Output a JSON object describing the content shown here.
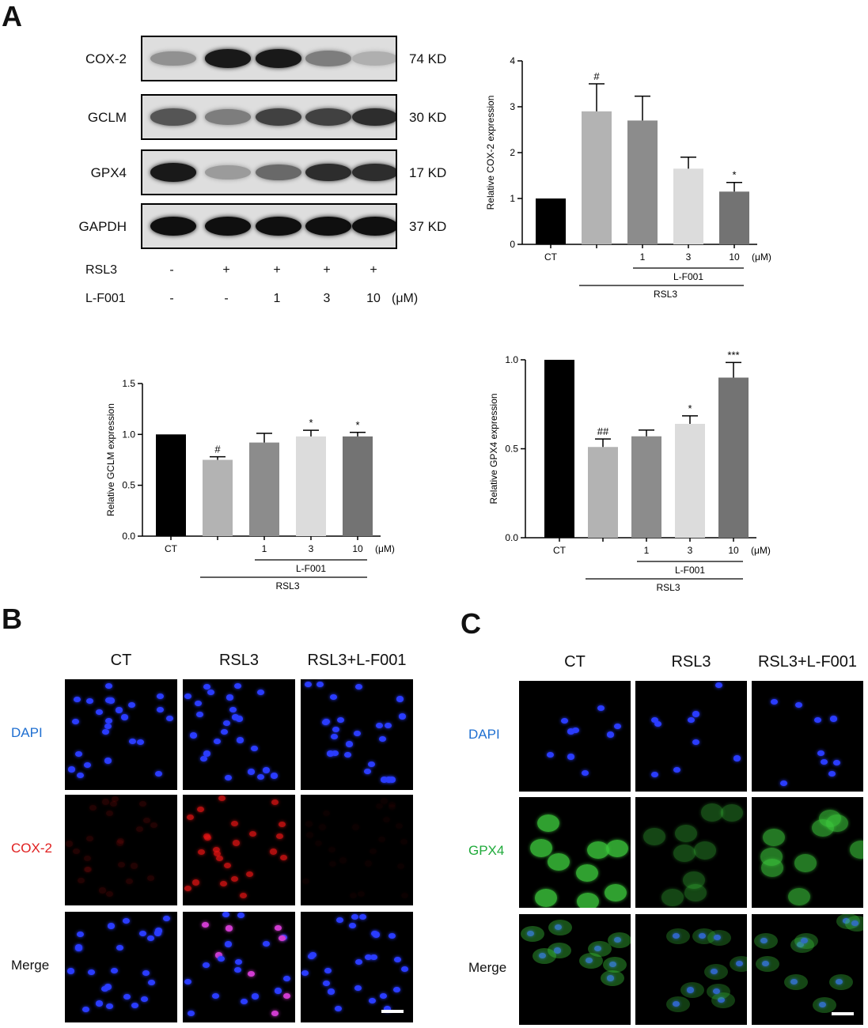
{
  "panels": {
    "A": {
      "letter": "A"
    },
    "B": {
      "letter": "B"
    },
    "C": {
      "letter": "C"
    }
  },
  "western_blot": {
    "proteins": [
      {
        "name": "COX-2",
        "kd": "74 KD",
        "intensities": [
          0.35,
          0.95,
          0.95,
          0.45,
          0.2
        ]
      },
      {
        "name": "GCLM",
        "kd": "30 KD",
        "intensities": [
          0.65,
          0.45,
          0.75,
          0.75,
          0.85
        ]
      },
      {
        "name": "GPX4",
        "kd": "17 KD",
        "intensities": [
          0.95,
          0.3,
          0.55,
          0.85,
          0.85
        ]
      },
      {
        "name": "GAPDH",
        "kd": "37 KD",
        "intensities": [
          1.0,
          1.0,
          1.0,
          1.0,
          1.0
        ]
      }
    ],
    "treatments": [
      {
        "label": "RSL3",
        "values": [
          "-",
          "+",
          "+",
          "+",
          "+"
        ],
        "unit": ""
      },
      {
        "label": "L-F001",
        "values": [
          "-",
          "-",
          "1",
          "3",
          "10"
        ],
        "unit": "(μM)"
      }
    ]
  },
  "chart_data": [
    {
      "type": "bar",
      "ylabel": "Relative COX-2 expression",
      "categories": [
        "CT",
        "",
        "1",
        "3",
        "10"
      ],
      "unit_label": "(μM)",
      "values": [
        1.0,
        2.9,
        2.7,
        1.65,
        1.15
      ],
      "errors": [
        0,
        0.6,
        0.53,
        0.25,
        0.2
      ],
      "significance": [
        "",
        "#",
        "",
        "",
        "*"
      ],
      "colors": [
        "#000000",
        "#b3b3b3",
        "#8c8c8c",
        "#dcdcdc",
        "#737373"
      ],
      "ylim": [
        0,
        4
      ],
      "yticks": [
        "0",
        "1",
        "2",
        "3",
        "4"
      ],
      "bracket_inner": "L-F001",
      "bracket_outer": "RSL3"
    },
    {
      "type": "bar",
      "ylabel": "Relative GCLM expression",
      "categories": [
        "CT",
        "",
        "1",
        "3",
        "10"
      ],
      "unit_label": "(μM)",
      "values": [
        1.0,
        0.75,
        0.92,
        0.98,
        0.98
      ],
      "errors": [
        0,
        0.03,
        0.09,
        0.06,
        0.04
      ],
      "significance": [
        "",
        "#",
        "",
        "*",
        "*"
      ],
      "colors": [
        "#000000",
        "#b3b3b3",
        "#8c8c8c",
        "#dcdcdc",
        "#737373"
      ],
      "ylim": [
        0,
        1.5
      ],
      "yticks": [
        "0.0",
        "0.5",
        "1.0",
        "1.5"
      ],
      "bracket_inner": "L-F001",
      "bracket_outer": "RSL3"
    },
    {
      "type": "bar",
      "ylabel": "Relative GPX4 expression",
      "categories": [
        "CT",
        "",
        "1",
        "3",
        "10"
      ],
      "unit_label": "(μM)",
      "values": [
        1.0,
        0.51,
        0.57,
        0.64,
        0.9
      ],
      "errors": [
        0,
        0.045,
        0.035,
        0.045,
        0.085
      ],
      "significance": [
        "",
        "##",
        "",
        "*",
        "***"
      ],
      "colors": [
        "#000000",
        "#b3b3b3",
        "#8c8c8c",
        "#dcdcdc",
        "#737373"
      ],
      "ylim": [
        0,
        1.0
      ],
      "yticks": [
        "0.0",
        "0.5",
        "1.0"
      ],
      "bracket_inner": "L-F001",
      "bracket_outer": "RSL3"
    }
  ],
  "microscopy_B": {
    "columns": [
      "CT",
      "RSL3",
      "RSL3+L-F001"
    ],
    "rows": [
      {
        "label": "DAPI",
        "color": "#1f6fd1"
      },
      {
        "label": "COX-2",
        "color": "#e02020"
      },
      {
        "label": "Merge",
        "color": "#111111"
      }
    ],
    "signal_levels": [
      [
        0.8,
        0.8,
        0.8
      ],
      [
        0.15,
        0.75,
        0.05
      ],
      [
        0.8,
        0.9,
        0.8
      ]
    ]
  },
  "microscopy_C": {
    "columns": [
      "CT",
      "RSL3",
      "RSL3+L-F001"
    ],
    "rows": [
      {
        "label": "DAPI",
        "color": "#1f6fd1"
      },
      {
        "label": "GPX4",
        "color": "#1faa3a"
      },
      {
        "label": "Merge",
        "color": "#111111"
      }
    ],
    "signal_levels": [
      [
        0.8,
        0.8,
        0.8
      ],
      [
        0.8,
        0.35,
        0.6
      ],
      [
        0.8,
        0.6,
        0.7
      ]
    ]
  }
}
